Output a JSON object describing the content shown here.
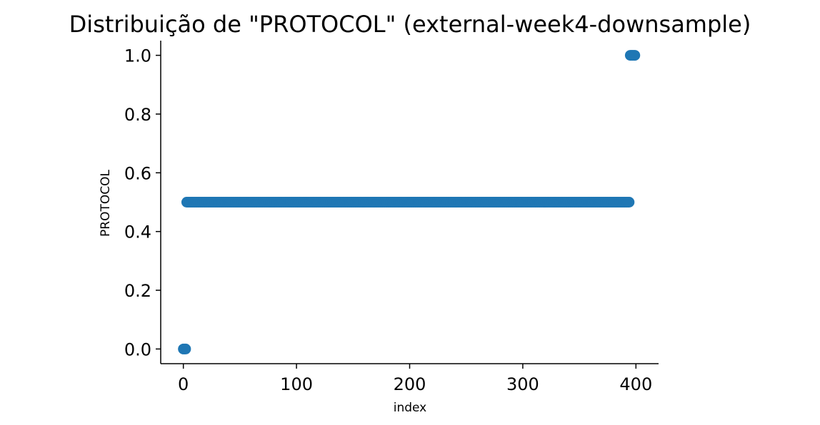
{
  "chart_data": {
    "type": "scatter",
    "title": "Distribuição de \"PROTOCOL\" (external-week4-downsample)",
    "xlabel": "index",
    "ylabel": "PROTOCOL",
    "xlim": [
      -20,
      420
    ],
    "ylim": [
      -0.05,
      1.05
    ],
    "xticks": [
      0,
      100,
      200,
      300,
      400
    ],
    "xtick_labels": [
      "0",
      "100",
      "200",
      "300",
      "400"
    ],
    "yticks": [
      0.0,
      0.2,
      0.4,
      0.6,
      0.8,
      1.0
    ],
    "ytick_labels": [
      "0.0",
      "0.2",
      "0.4",
      "0.6",
      "0.8",
      "1.0"
    ],
    "grid": false,
    "marker_color": "#1f77b4",
    "series": [
      {
        "segments": [
          {
            "x_start": 0,
            "x_end": 2,
            "y": 0.0
          },
          {
            "x_start": 3,
            "x_end": 394,
            "y": 0.5
          },
          {
            "x_start": 395,
            "x_end": 399,
            "y": 1.0
          }
        ]
      }
    ]
  }
}
